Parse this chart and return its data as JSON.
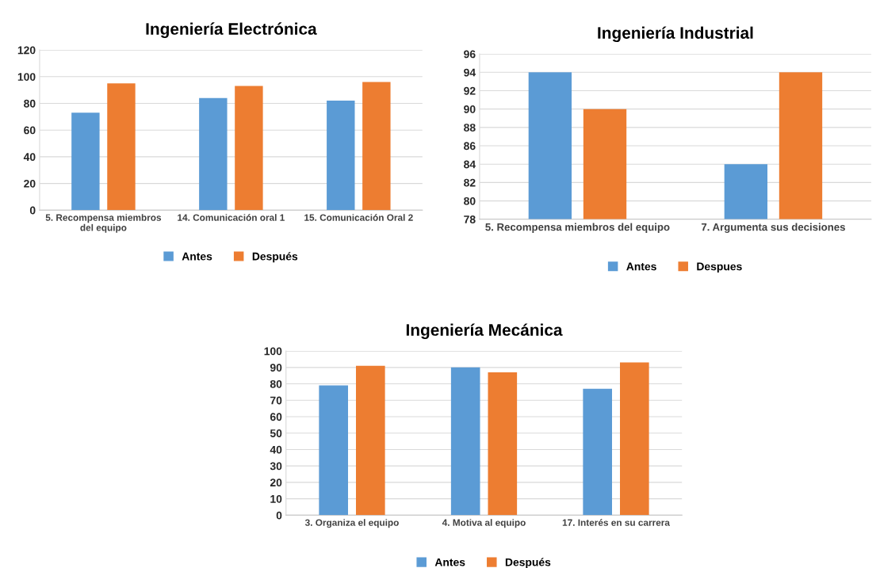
{
  "chart_data": [
    {
      "type": "bar",
      "title": "Ingeniería Electrónica",
      "categories": [
        "5. Recompensa miembros\ndel equipo",
        "14. Comunicación oral 1",
        "15. Comunicación Oral 2"
      ],
      "series": [
        {
          "name": "Antes",
          "color": "#5b9bd5",
          "values": [
            73,
            84,
            82
          ]
        },
        {
          "name": "Después",
          "color": "#ed7d31",
          "values": [
            95,
            93,
            96
          ]
        }
      ],
      "ylim": [
        0,
        120
      ],
      "yticks": [
        0,
        20,
        40,
        60,
        80,
        100,
        120
      ],
      "grid": "y",
      "legend": "bottom"
    },
    {
      "type": "bar",
      "title": "Ingeniería Industrial",
      "categories": [
        "5. Recompensa miembros del equipo",
        "7. Argumenta sus decisiones"
      ],
      "series": [
        {
          "name": "Antes",
          "color": "#5b9bd5",
          "values": [
            94,
            84
          ]
        },
        {
          "name": "Despues",
          "color": "#ed7d31",
          "values": [
            90,
            94
          ]
        }
      ],
      "ylim": [
        78,
        96
      ],
      "yticks": [
        78,
        80,
        82,
        84,
        86,
        88,
        90,
        92,
        94,
        96
      ],
      "grid": "y",
      "legend": "bottom"
    },
    {
      "type": "bar",
      "title": "Ingeniería Mecánica",
      "categories": [
        "3. Organiza el equipo",
        "4. Motiva al equipo",
        "17. Interés en su carrera"
      ],
      "series": [
        {
          "name": "Antes",
          "color": "#5b9bd5",
          "values": [
            79,
            90,
            77
          ]
        },
        {
          "name": "Después",
          "color": "#ed7d31",
          "values": [
            91,
            87,
            93
          ]
        }
      ],
      "ylim": [
        0,
        100
      ],
      "yticks": [
        0,
        10,
        20,
        30,
        40,
        50,
        60,
        70,
        80,
        90,
        100
      ],
      "grid": "y",
      "legend": "bottom"
    }
  ]
}
